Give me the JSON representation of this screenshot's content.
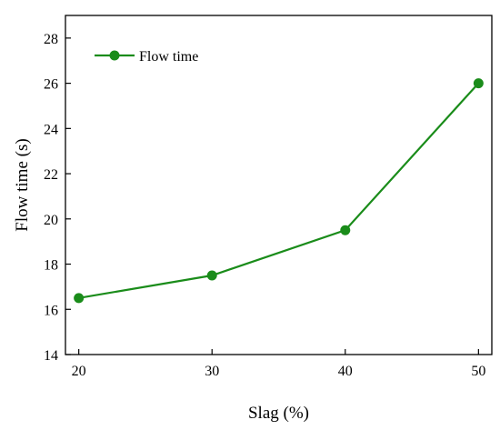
{
  "chart_data": {
    "type": "line",
    "title": "",
    "xlabel": "Slag (%)",
    "ylabel": "Flow time (s)",
    "xlim": [
      19,
      51
    ],
    "ylim": [
      14,
      29
    ],
    "x_ticks": [
      20,
      30,
      40,
      50
    ],
    "y_ticks": [
      14,
      16,
      18,
      20,
      22,
      24,
      26,
      28
    ],
    "grid": false,
    "legend_position": "top-left",
    "series": [
      {
        "name": "Flow time",
        "color": "#1a8c1a",
        "marker": "circle",
        "x": [
          20,
          30,
          40,
          50
        ],
        "y": [
          16.5,
          17.5,
          19.5,
          26
        ]
      }
    ]
  }
}
